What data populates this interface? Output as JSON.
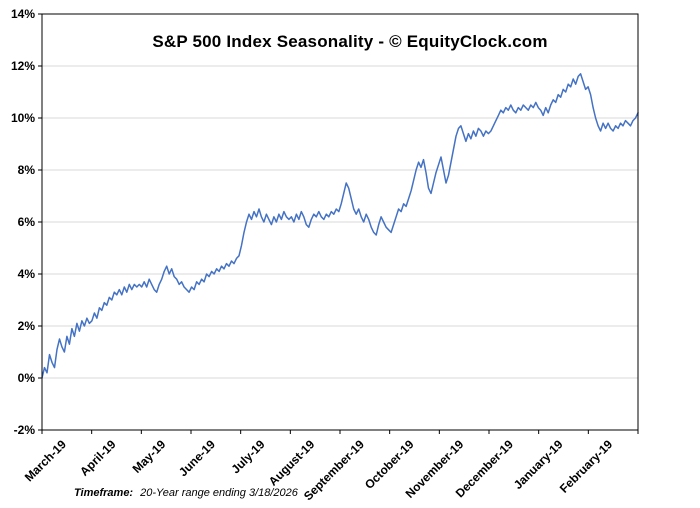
{
  "chart_data": {
    "type": "line",
    "title": "S&P 500 Index Seasonality - © EquityClock.com",
    "xlabel": "",
    "ylabel": "",
    "legend": "none",
    "grid": "horizontal",
    "ylim": [
      -2,
      14
    ],
    "ytick_step": 2,
    "ytick_suffix": "%",
    "line_color": "#4472c4",
    "grid_color": "#d9d9d9",
    "axis_color": "#000000",
    "categories": [
      "March-19",
      "April-19",
      "May-19",
      "June-19",
      "July-19",
      "August-19",
      "September-19",
      "October-19",
      "November-19",
      "December-19",
      "January-19",
      "February-19"
    ],
    "values": [
      0.0,
      0.4,
      0.2,
      0.9,
      0.6,
      0.4,
      1.1,
      1.5,
      1.2,
      1.0,
      1.6,
      1.3,
      1.9,
      1.6,
      2.1,
      1.8,
      2.2,
      2.0,
      2.3,
      2.1,
      2.2,
      2.5,
      2.3,
      2.7,
      2.6,
      2.9,
      2.8,
      3.1,
      3.0,
      3.3,
      3.2,
      3.4,
      3.2,
      3.5,
      3.3,
      3.6,
      3.4,
      3.6,
      3.5,
      3.6,
      3.5,
      3.7,
      3.5,
      3.8,
      3.6,
      3.4,
      3.3,
      3.6,
      3.8,
      4.1,
      4.3,
      4.0,
      4.2,
      3.9,
      3.8,
      3.6,
      3.7,
      3.5,
      3.4,
      3.3,
      3.5,
      3.4,
      3.7,
      3.6,
      3.8,
      3.7,
      4.0,
      3.9,
      4.1,
      4.0,
      4.2,
      4.1,
      4.3,
      4.2,
      4.4,
      4.3,
      4.5,
      4.4,
      4.6,
      4.7,
      5.1,
      5.6,
      6.0,
      6.3,
      6.1,
      6.4,
      6.2,
      6.5,
      6.2,
      6.0,
      6.3,
      6.1,
      5.9,
      6.2,
      6.0,
      6.3,
      6.1,
      6.4,
      6.2,
      6.1,
      6.2,
      6.0,
      6.3,
      6.1,
      6.4,
      6.2,
      5.9,
      5.8,
      6.1,
      6.3,
      6.2,
      6.4,
      6.2,
      6.1,
      6.3,
      6.2,
      6.4,
      6.3,
      6.5,
      6.4,
      6.7,
      7.1,
      7.5,
      7.3,
      6.9,
      6.5,
      6.3,
      6.5,
      6.2,
      6.0,
      6.3,
      6.1,
      5.8,
      5.6,
      5.5,
      5.9,
      6.2,
      6.0,
      5.8,
      5.7,
      5.6,
      5.9,
      6.2,
      6.5,
      6.4,
      6.7,
      6.6,
      6.9,
      7.2,
      7.6,
      8.0,
      8.3,
      8.1,
      8.4,
      7.9,
      7.3,
      7.1,
      7.5,
      7.9,
      8.2,
      8.5,
      8.0,
      7.5,
      7.8,
      8.3,
      8.8,
      9.3,
      9.6,
      9.7,
      9.4,
      9.1,
      9.4,
      9.2,
      9.5,
      9.3,
      9.6,
      9.5,
      9.3,
      9.5,
      9.4,
      9.5,
      9.7,
      9.9,
      10.1,
      10.3,
      10.2,
      10.4,
      10.3,
      10.5,
      10.3,
      10.2,
      10.4,
      10.3,
      10.5,
      10.4,
      10.3,
      10.5,
      10.4,
      10.6,
      10.4,
      10.3,
      10.1,
      10.4,
      10.2,
      10.5,
      10.7,
      10.6,
      10.9,
      10.8,
      11.1,
      11.0,
      11.3,
      11.2,
      11.5,
      11.3,
      11.6,
      11.7,
      11.4,
      11.1,
      11.2,
      10.9,
      10.4,
      10.0,
      9.7,
      9.5,
      9.8,
      9.6,
      9.8,
      9.6,
      9.5,
      9.7,
      9.6,
      9.8,
      9.7,
      9.9,
      9.8,
      9.7,
      9.9,
      10.0,
      10.2
    ]
  },
  "footer": {
    "label": "Timeframe:",
    "value": "20-Year range ending 3/18/2026"
  }
}
